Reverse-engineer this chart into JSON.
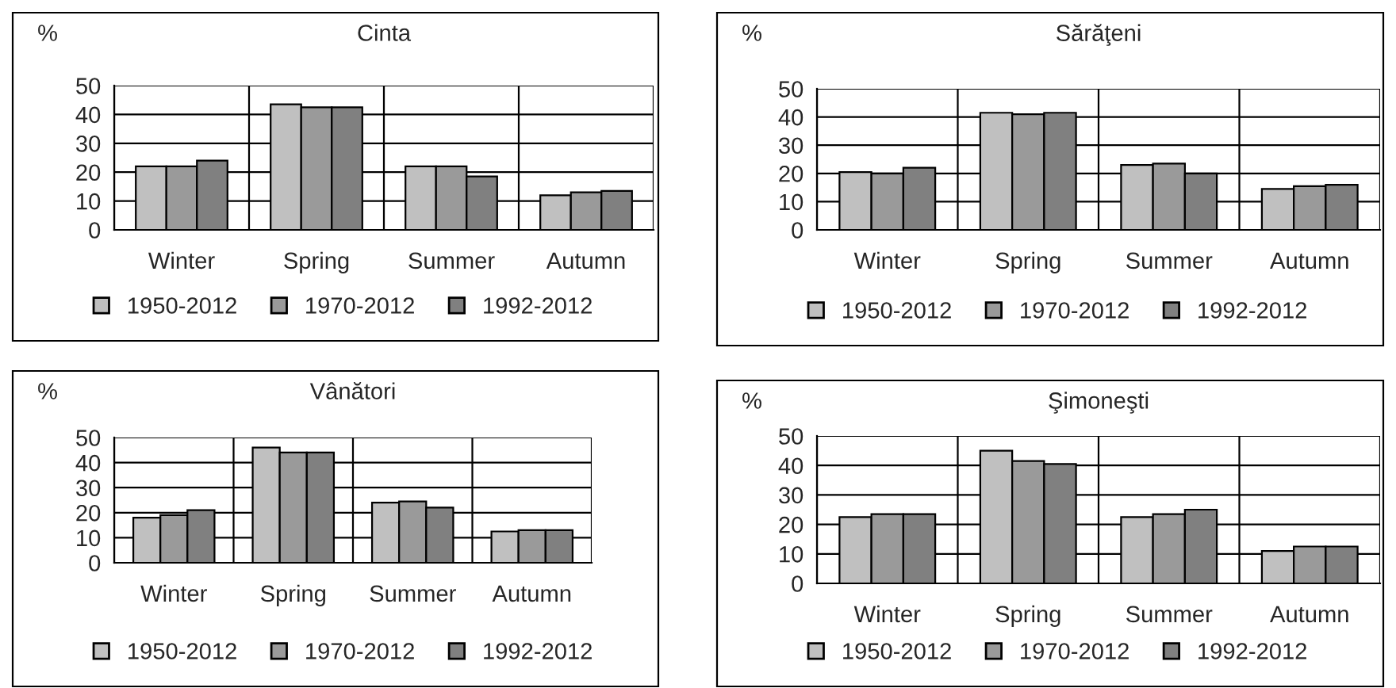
{
  "chart_data": [
    {
      "type": "bar",
      "title": "Cinta",
      "ylabel": "%",
      "categories": [
        "Winter",
        "Spring",
        "Summer",
        "Autumn"
      ],
      "ylim": [
        0,
        50
      ],
      "yticks": [
        0,
        10,
        20,
        30,
        40,
        50
      ],
      "grid": true,
      "legend": "bottom",
      "series": [
        {
          "name": "1950-2012",
          "color": "#c0c0c0",
          "values": [
            22,
            43.5,
            22,
            12
          ]
        },
        {
          "name": "1970-2012",
          "color": "#9a9a9a",
          "values": [
            22,
            42.5,
            22,
            13
          ]
        },
        {
          "name": "1992-2012",
          "color": "#808080",
          "values": [
            24,
            42.5,
            18.5,
            13.5
          ]
        }
      ]
    },
    {
      "type": "bar",
      "title": "Sărăţeni",
      "ylabel": "%",
      "categories": [
        "Winter",
        "Spring",
        "Summer",
        "Autumn"
      ],
      "ylim": [
        0,
        50
      ],
      "yticks": [
        0,
        10,
        20,
        30,
        40,
        50
      ],
      "grid": true,
      "legend": "bottom",
      "series": [
        {
          "name": "1950-2012",
          "color": "#c0c0c0",
          "values": [
            20.5,
            41.5,
            23,
            14.5
          ]
        },
        {
          "name": "1970-2012",
          "color": "#9a9a9a",
          "values": [
            20,
            41,
            23.5,
            15.5
          ]
        },
        {
          "name": "1992-2012",
          "color": "#808080",
          "values": [
            22,
            41.5,
            20,
            16
          ]
        }
      ]
    },
    {
      "type": "bar",
      "title": "Vânători",
      "ylabel": "%",
      "categories": [
        "Winter",
        "Spring",
        "Summer",
        "Autumn"
      ],
      "ylim": [
        0,
        50
      ],
      "yticks": [
        0,
        10,
        20,
        30,
        40,
        50
      ],
      "grid": true,
      "legend": "bottom",
      "series": [
        {
          "name": "1950-2012",
          "color": "#c0c0c0",
          "values": [
            18,
            46,
            24,
            12.5
          ]
        },
        {
          "name": "1970-2012",
          "color": "#9a9a9a",
          "values": [
            19,
            44,
            24.5,
            13
          ]
        },
        {
          "name": "1992-2012",
          "color": "#808080",
          "values": [
            21,
            44,
            22,
            13
          ]
        }
      ]
    },
    {
      "type": "bar",
      "title": "Şimoneşti",
      "ylabel": "%",
      "categories": [
        "Winter",
        "Spring",
        "Summer",
        "Autumn"
      ],
      "ylim": [
        0,
        50
      ],
      "yticks": [
        0,
        10,
        20,
        30,
        40,
        50
      ],
      "grid": true,
      "legend": "bottom",
      "series": [
        {
          "name": "1950-2012",
          "color": "#c0c0c0",
          "values": [
            22.5,
            45,
            22.5,
            11
          ]
        },
        {
          "name": "1970-2012",
          "color": "#9a9a9a",
          "values": [
            23.5,
            41.5,
            23.5,
            12.5
          ]
        },
        {
          "name": "1992-2012",
          "color": "#808080",
          "values": [
            23.5,
            40.5,
            25,
            12.5
          ]
        }
      ]
    }
  ]
}
